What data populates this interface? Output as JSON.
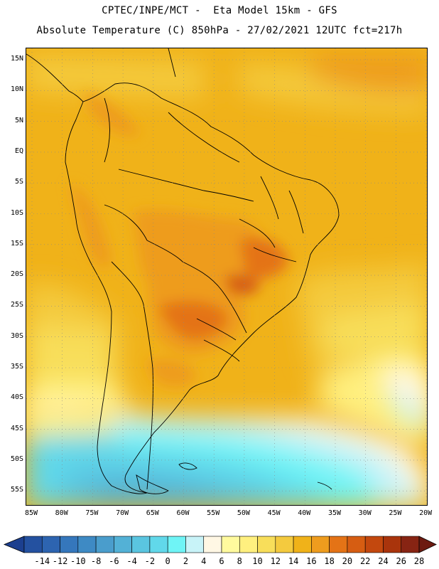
{
  "header": {
    "line1": "CPTEC/INPE/MCT -  Eta Model 15km - GFS",
    "line2": "Absolute Temperature (C) 850hPa - 27/02/2021 12UTC fct=217h"
  },
  "map": {
    "region": "South America",
    "lat_labels": [
      "15N",
      "10N",
      "5N",
      "EQ",
      "5S",
      "10S",
      "15S",
      "20S",
      "25S",
      "30S",
      "35S",
      "40S",
      "45S",
      "50S",
      "55S"
    ],
    "lon_labels": [
      "85W",
      "80W",
      "75W",
      "70W",
      "65W",
      "60W",
      "55W",
      "50W",
      "45W",
      "40W",
      "35W",
      "30W",
      "25W",
      "20W"
    ]
  },
  "legend": {
    "units": "C",
    "labels": [
      "-14",
      "-12",
      "-10",
      "-8",
      "-6",
      "-4",
      "-2",
      "0",
      "2",
      "4",
      "6",
      "8",
      "10",
      "12",
      "14",
      "16",
      "18",
      "20",
      "22",
      "24",
      "26",
      "28"
    ],
    "colors": [
      "#1c3f8f",
      "#2451a0",
      "#2d64b0",
      "#3577bc",
      "#3e8ac4",
      "#4a9dcc",
      "#53b1d6",
      "#5ac5e0",
      "#61d8ea",
      "#6ff4f6",
      "#c8f3f8",
      "#fff7e4",
      "#fffa9e",
      "#fff07f",
      "#f8de5a",
      "#f4ca3e",
      "#f0b219",
      "#ee9c1e",
      "#e47316",
      "#d65d12",
      "#c3480e",
      "#a9340c",
      "#872413",
      "#6d1a10"
    ]
  }
}
